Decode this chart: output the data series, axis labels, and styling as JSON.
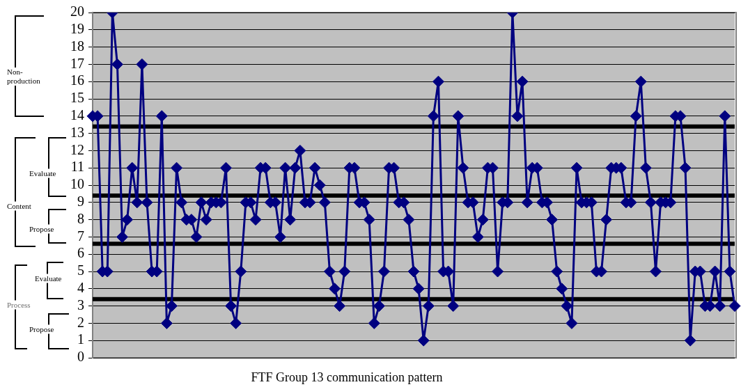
{
  "chart_data": {
    "type": "line",
    "title": "FTF Group 13 communication pattern",
    "categories": [
      null,
      null,
      null,
      null,
      null,
      null,
      null,
      null,
      null,
      null,
      null,
      null,
      null,
      null,
      null,
      null,
      null,
      null,
      null,
      null,
      null,
      null,
      null,
      null,
      null,
      null,
      null,
      null,
      null,
      null,
      null,
      null,
      null,
      null,
      null,
      null,
      null,
      null,
      null,
      null,
      null,
      null,
      null,
      null,
      null,
      null,
      null,
      null,
      null,
      null,
      null,
      null,
      null,
      null,
      null,
      null,
      null,
      null,
      null,
      null,
      null,
      null,
      null,
      null,
      null,
      null,
      null,
      null,
      null,
      null,
      null,
      null,
      null,
      null,
      null,
      null,
      null,
      null,
      null,
      null,
      null,
      null,
      null,
      null,
      null,
      null,
      null,
      null,
      null,
      null,
      null,
      null,
      null,
      null,
      null,
      null,
      null,
      null,
      null,
      null,
      null,
      null,
      null,
      null,
      null,
      null,
      null,
      null,
      null,
      null,
      null,
      null,
      null,
      null,
      null,
      null,
      null,
      null,
      null,
      null,
      null,
      null,
      null,
      null,
      null,
      null,
      null,
      null,
      null,
      null,
      null
    ],
    "series": [
      {
        "color": "#000080",
        "values": [
          14,
          14,
          5,
          5,
          20,
          17,
          7,
          8,
          11,
          9,
          17,
          9,
          5,
          5,
          14,
          2,
          3,
          11,
          9,
          8,
          8,
          7,
          9,
          8,
          9,
          9,
          9,
          11,
          3,
          2,
          5,
          9,
          9,
          8,
          11,
          11,
          9,
          9,
          7,
          11,
          8,
          11,
          12,
          9,
          9,
          11,
          10,
          9,
          5,
          4,
          3,
          5,
          11,
          11,
          9,
          9,
          8,
          2,
          3,
          5,
          11,
          11,
          9,
          9,
          8,
          5,
          4,
          1,
          3,
          14,
          16,
          5,
          5,
          3,
          14,
          11,
          9,
          9,
          7,
          8,
          11,
          11,
          5,
          9,
          9,
          20,
          14,
          16,
          9,
          11,
          11,
          9,
          9,
          8,
          5,
          4,
          3,
          2,
          11,
          9,
          9,
          9,
          5,
          5,
          8,
          11,
          11,
          11,
          9,
          9,
          14,
          16,
          11,
          9,
          5,
          9,
          9,
          9,
          14,
          14,
          11,
          1,
          5,
          5,
          3,
          3,
          5,
          3,
          14,
          5,
          3
        ]
      }
    ],
    "ylim": [
      0,
      20
    ],
    "yticks": [
      0,
      1,
      2,
      3,
      4,
      5,
      6,
      7,
      8,
      9,
      10,
      11,
      12,
      13,
      14,
      15,
      16,
      17,
      18,
      19,
      20
    ],
    "grid": "y",
    "marker": "diamond",
    "legend": false,
    "tick_labels": "y",
    "ref_lines": [
      {
        "axis": "y",
        "value": 13.4,
        "color": "#000000"
      },
      {
        "axis": "y",
        "value": 9.4,
        "color": "#000000"
      },
      {
        "axis": "y",
        "value": 6.6,
        "color": "#000000"
      },
      {
        "axis": "y",
        "value": 3.4,
        "color": "#000000"
      }
    ],
    "annotations": [
      "Non-production",
      "Content",
      "Evaluate",
      "Propose",
      "Evaluate",
      "Process",
      "Propose"
    ]
  }
}
